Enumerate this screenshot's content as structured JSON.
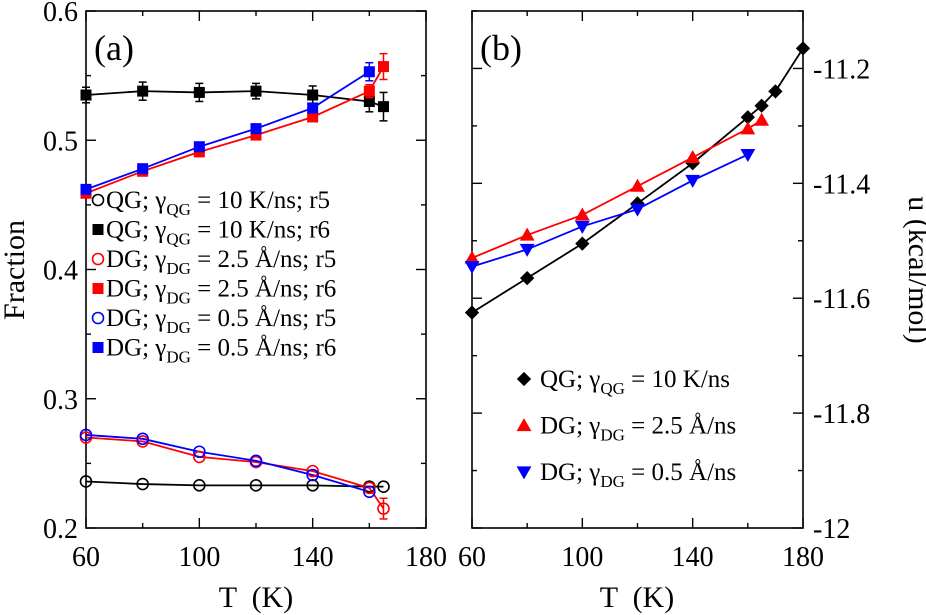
{
  "chart_data": [
    {
      "type": "line",
      "panel_label": "(a)",
      "xlabel": "T  (K)",
      "ylabel": "Fraction",
      "xlim": [
        60,
        180
      ],
      "ylim": [
        0.2,
        0.6
      ],
      "xticks": [
        60,
        100,
        140,
        180
      ],
      "xtick_labels": [
        "60",
        "100",
        "140",
        "180"
      ],
      "yticks": [
        0.2,
        0.3,
        0.4,
        0.5,
        0.6
      ],
      "ytick_labels": [
        "0.2",
        "0.3",
        "0.4",
        "0.5",
        "0.6"
      ],
      "legend_position": "middle-left",
      "series": [
        {
          "name": "QG; γQG = 10 K/ns; r5",
          "legend_parts": {
            "pre": "QG; γ",
            "sub": "QG",
            "post": " = 10 K/ns; r5"
          },
          "color": "#000000",
          "marker": "circle-open",
          "x": [
            60,
            80,
            100,
            120,
            140,
            160,
            165
          ],
          "y": [
            0.236,
            0.234,
            0.233,
            0.233,
            0.233,
            0.232,
            0.232
          ],
          "err": [
            0,
            0,
            0,
            0,
            0,
            0,
            0
          ]
        },
        {
          "name": "QG; γQG = 10 K/ns; r6",
          "legend_parts": {
            "pre": "QG; γ",
            "sub": "QG",
            "post": " = 10 K/ns; r6"
          },
          "color": "#000000",
          "marker": "square-filled",
          "x": [
            60,
            80,
            100,
            120,
            140,
            160,
            165
          ],
          "y": [
            0.535,
            0.538,
            0.537,
            0.538,
            0.535,
            0.53,
            0.526
          ],
          "err": [
            0.006,
            0.007,
            0.007,
            0.006,
            0.007,
            0.008,
            0.011
          ]
        },
        {
          "name": "DG; γDG = 2.5 Å/ns; r5",
          "legend_parts": {
            "pre": "DG; γ",
            "sub": "DG",
            "post": " = 2.5 Å/ns; r5"
          },
          "color": "#ff0000",
          "marker": "circle-open",
          "x": [
            60,
            80,
            100,
            120,
            140,
            160,
            165
          ],
          "y": [
            0.27,
            0.267,
            0.255,
            0.251,
            0.244,
            0.231,
            0.215
          ],
          "err": [
            0,
            0,
            0,
            0,
            0,
            0,
            0.008
          ]
        },
        {
          "name": "DG; γDG = 2.5 Å/ns; r6",
          "legend_parts": {
            "pre": "DG; γ",
            "sub": "DG",
            "post": " = 2.5 Å/ns; r6"
          },
          "color": "#ff0000",
          "marker": "square-filled",
          "x": [
            60,
            80,
            100,
            120,
            140,
            160,
            165
          ],
          "y": [
            0.459,
            0.476,
            0.491,
            0.504,
            0.518,
            0.538,
            0.557
          ],
          "err": [
            0,
            0,
            0,
            0,
            0,
            0.005,
            0.01
          ]
        },
        {
          "name": "DG; γDG = 0.5 Å/ns; r5",
          "legend_parts": {
            "pre": "DG; γ",
            "sub": "DG",
            "post": " = 0.5 Å/ns; r5"
          },
          "color": "#0000ff",
          "marker": "circle-open",
          "x": [
            60,
            80,
            100,
            120,
            140,
            160
          ],
          "y": [
            0.272,
            0.269,
            0.259,
            0.252,
            0.241,
            0.228
          ],
          "err": [
            0,
            0,
            0,
            0,
            0,
            0
          ]
        },
        {
          "name": "DG; γDG = 0.5 Å/ns; r6",
          "legend_parts": {
            "pre": "DG; γ",
            "sub": "DG",
            "post": " = 0.5 Å/ns; r6"
          },
          "color": "#0000ff",
          "marker": "square-filled",
          "x": [
            60,
            80,
            100,
            120,
            140,
            160
          ],
          "y": [
            0.462,
            0.478,
            0.495,
            0.509,
            0.525,
            0.553
          ],
          "err": [
            0,
            0,
            0,
            0,
            0,
            0.007
          ]
        }
      ]
    },
    {
      "type": "line",
      "panel_label": "(b)",
      "xlabel": "T  (K)",
      "ylabel": "u (kcal/mol)",
      "xlim": [
        60,
        180
      ],
      "ylim": [
        -12,
        -11.1
      ],
      "y_axis_side": "right",
      "xticks": [
        60,
        100,
        140,
        180
      ],
      "xtick_labels": [
        "60",
        "100",
        "140",
        "180"
      ],
      "yticks": [
        -12,
        -11.8,
        -11.6,
        -11.4,
        -11.2
      ],
      "ytick_labels": [
        "-12",
        "-11.8",
        "-11.6",
        "-11.4",
        "-11.2"
      ],
      "legend_position": "bottom-right",
      "series": [
        {
          "name": "QG; γQG = 10 K/ns",
          "legend_parts": {
            "pre": "QG; γ",
            "sub": "QG",
            "post": " = 10 K/ns"
          },
          "color": "#000000",
          "marker": "diamond",
          "x": [
            60,
            80,
            100,
            120,
            140,
            160,
            165,
            170,
            180
          ],
          "y": [
            -11.625,
            -11.565,
            -11.505,
            -11.435,
            -11.365,
            -11.285,
            -11.265,
            -11.24,
            -11.165
          ]
        },
        {
          "name": "DG; γDG = 2.5 Å/ns",
          "legend_parts": {
            "pre": "DG; γ",
            "sub": "DG",
            "post": " = 2.5 Å/ns"
          },
          "color": "#ff0000",
          "marker": "triangle-up",
          "x": [
            60,
            80,
            100,
            120,
            140,
            160,
            165
          ],
          "y": [
            -11.53,
            -11.49,
            -11.455,
            -11.405,
            -11.355,
            -11.305,
            -11.29
          ]
        },
        {
          "name": "DG; γDG = 0.5 Å/ns",
          "legend_parts": {
            "pre": "DG; γ",
            "sub": "DG",
            "post": " = 0.5 Å/ns"
          },
          "color": "#0000ff",
          "marker": "triangle-down",
          "x": [
            60,
            80,
            100,
            120,
            140,
            160
          ],
          "y": [
            -11.545,
            -11.515,
            -11.475,
            -11.445,
            -11.395,
            -11.35
          ]
        }
      ]
    }
  ]
}
